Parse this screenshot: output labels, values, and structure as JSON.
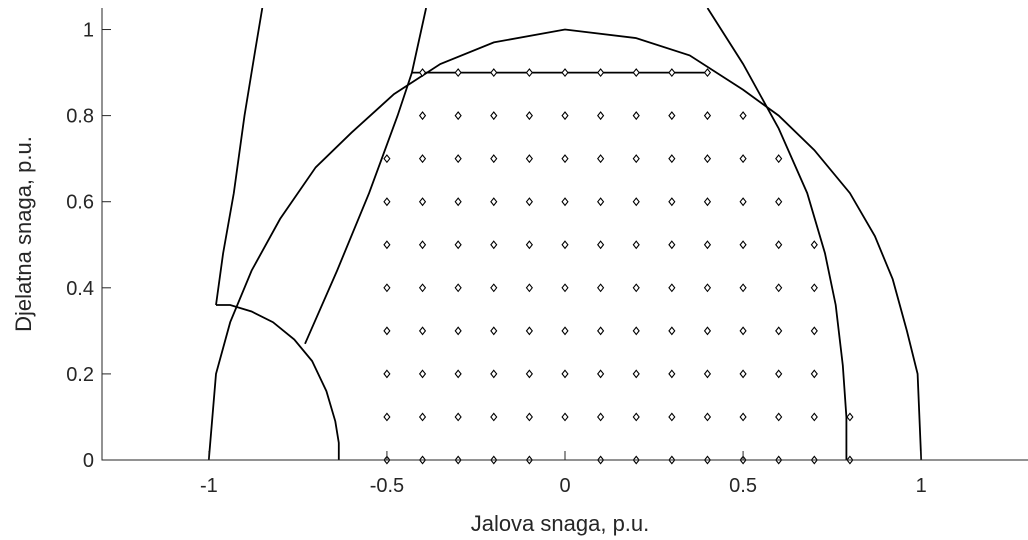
{
  "chart_data": {
    "type": "scatter",
    "title": "",
    "xlabel": "Jalova snaga, p.u.",
    "ylabel": "Djelatna snaga, p.u.",
    "xlim": [
      -1.3,
      1.3
    ],
    "ylim": [
      0,
      1.05
    ],
    "xticks": [
      -1,
      -0.5,
      0,
      0.5,
      1
    ],
    "xtick_labels": [
      "-1",
      "-0.5",
      "0",
      "0.5",
      "1"
    ],
    "yticks": [
      0,
      0.2,
      0.4,
      0.6,
      0.8,
      1
    ],
    "ytick_labels": [
      "0",
      "0.2",
      "0.4",
      "0.6",
      "0.8",
      "1"
    ],
    "grid": false,
    "legend": "none",
    "line_color": "#000000",
    "series": [
      {
        "kind": "line",
        "points": [
          [
            -1,
            0
          ],
          [
            -0.98,
            0.2
          ],
          [
            -0.94,
            0.32
          ],
          [
            -0.88,
            0.44
          ],
          [
            -0.8,
            0.56
          ],
          [
            -0.7,
            0.68
          ],
          [
            -0.6,
            0.76
          ],
          [
            -0.48,
            0.85
          ],
          [
            -0.35,
            0.92
          ],
          [
            -0.2,
            0.97
          ],
          [
            0,
            1.0
          ],
          [
            0.2,
            0.98
          ],
          [
            0.35,
            0.94
          ],
          [
            0.5,
            0.86
          ],
          [
            0.6,
            0.8
          ],
          [
            0.7,
            0.72
          ],
          [
            0.8,
            0.62
          ],
          [
            0.87,
            0.52
          ],
          [
            0.92,
            0.42
          ],
          [
            0.96,
            0.3
          ],
          [
            0.99,
            0.2
          ],
          [
            1,
            0
          ]
        ]
      },
      {
        "kind": "line",
        "points": [
          [
            -0.98,
            0.36
          ],
          [
            -0.94,
            0.36
          ],
          [
            -0.88,
            0.345
          ],
          [
            -0.82,
            0.32
          ],
          [
            -0.76,
            0.28
          ],
          [
            -0.71,
            0.23
          ],
          [
            -0.67,
            0.16
          ],
          [
            -0.645,
            0.09
          ],
          [
            -0.635,
            0.04
          ],
          [
            -0.635,
            0
          ]
        ]
      },
      {
        "kind": "line",
        "points": [
          [
            -0.98,
            0.36
          ],
          [
            -0.96,
            0.48
          ],
          [
            -0.93,
            0.62
          ],
          [
            -0.9,
            0.8
          ],
          [
            -0.87,
            0.95
          ],
          [
            -0.85,
            1.05
          ]
        ]
      },
      {
        "kind": "line",
        "points": [
          [
            -0.73,
            0.27
          ],
          [
            -0.64,
            0.44
          ],
          [
            -0.55,
            0.62
          ],
          [
            -0.47,
            0.8
          ],
          [
            -0.43,
            0.9
          ],
          [
            -0.39,
            1.05
          ]
        ]
      },
      {
        "kind": "line",
        "points": [
          [
            0.4,
            1.05
          ],
          [
            0.5,
            0.92
          ],
          [
            0.6,
            0.77
          ],
          [
            0.68,
            0.62
          ],
          [
            0.73,
            0.48
          ],
          [
            0.76,
            0.36
          ],
          [
            0.78,
            0.22
          ],
          [
            0.79,
            0.1
          ],
          [
            0.79,
            0
          ]
        ]
      },
      {
        "kind": "line",
        "points": [
          [
            -0.43,
            0.9
          ],
          [
            0.4,
            0.9
          ]
        ]
      },
      {
        "kind": "points",
        "marker": "diamond",
        "points": [
          [
            -0.4,
            0.9
          ],
          [
            -0.3,
            0.9
          ],
          [
            -0.2,
            0.9
          ],
          [
            -0.1,
            0.9
          ],
          [
            0,
            0.9
          ],
          [
            0.1,
            0.9
          ],
          [
            0.2,
            0.9
          ],
          [
            0.3,
            0.9
          ],
          [
            0.4,
            0.9
          ],
          [
            -0.4,
            0.8
          ],
          [
            -0.3,
            0.8
          ],
          [
            -0.2,
            0.8
          ],
          [
            -0.1,
            0.8
          ],
          [
            0,
            0.8
          ],
          [
            0.1,
            0.8
          ],
          [
            0.2,
            0.8
          ],
          [
            0.3,
            0.8
          ],
          [
            0.4,
            0.8
          ],
          [
            0.5,
            0.8
          ],
          [
            -0.5,
            0.7
          ],
          [
            -0.4,
            0.7
          ],
          [
            -0.3,
            0.7
          ],
          [
            -0.2,
            0.7
          ],
          [
            -0.1,
            0.7
          ],
          [
            0,
            0.7
          ],
          [
            0.1,
            0.7
          ],
          [
            0.2,
            0.7
          ],
          [
            0.3,
            0.7
          ],
          [
            0.4,
            0.7
          ],
          [
            0.5,
            0.7
          ],
          [
            0.6,
            0.7
          ],
          [
            -0.5,
            0.6
          ],
          [
            -0.4,
            0.6
          ],
          [
            -0.3,
            0.6
          ],
          [
            -0.2,
            0.6
          ],
          [
            -0.1,
            0.6
          ],
          [
            0,
            0.6
          ],
          [
            0.1,
            0.6
          ],
          [
            0.2,
            0.6
          ],
          [
            0.3,
            0.6
          ],
          [
            0.4,
            0.6
          ],
          [
            0.5,
            0.6
          ],
          [
            0.6,
            0.6
          ],
          [
            -0.5,
            0.5
          ],
          [
            -0.4,
            0.5
          ],
          [
            -0.3,
            0.5
          ],
          [
            -0.2,
            0.5
          ],
          [
            -0.1,
            0.5
          ],
          [
            0,
            0.5
          ],
          [
            0.1,
            0.5
          ],
          [
            0.2,
            0.5
          ],
          [
            0.3,
            0.5
          ],
          [
            0.4,
            0.5
          ],
          [
            0.5,
            0.5
          ],
          [
            0.6,
            0.5
          ],
          [
            0.7,
            0.5
          ],
          [
            -0.5,
            0.4
          ],
          [
            -0.4,
            0.4
          ],
          [
            -0.3,
            0.4
          ],
          [
            -0.2,
            0.4
          ],
          [
            -0.1,
            0.4
          ],
          [
            0,
            0.4
          ],
          [
            0.1,
            0.4
          ],
          [
            0.2,
            0.4
          ],
          [
            0.3,
            0.4
          ],
          [
            0.4,
            0.4
          ],
          [
            0.5,
            0.4
          ],
          [
            0.6,
            0.4
          ],
          [
            0.7,
            0.4
          ],
          [
            -0.5,
            0.3
          ],
          [
            -0.4,
            0.3
          ],
          [
            -0.3,
            0.3
          ],
          [
            -0.2,
            0.3
          ],
          [
            -0.1,
            0.3
          ],
          [
            0,
            0.3
          ],
          [
            0.1,
            0.3
          ],
          [
            0.2,
            0.3
          ],
          [
            0.3,
            0.3
          ],
          [
            0.4,
            0.3
          ],
          [
            0.5,
            0.3
          ],
          [
            0.6,
            0.3
          ],
          [
            0.7,
            0.3
          ],
          [
            -0.5,
            0.2
          ],
          [
            -0.4,
            0.2
          ],
          [
            -0.3,
            0.2
          ],
          [
            -0.2,
            0.2
          ],
          [
            -0.1,
            0.2
          ],
          [
            0,
            0.2
          ],
          [
            0.1,
            0.2
          ],
          [
            0.2,
            0.2
          ],
          [
            0.3,
            0.2
          ],
          [
            0.4,
            0.2
          ],
          [
            0.5,
            0.2
          ],
          [
            0.6,
            0.2
          ],
          [
            0.7,
            0.2
          ],
          [
            -0.5,
            0.1
          ],
          [
            -0.4,
            0.1
          ],
          [
            -0.3,
            0.1
          ],
          [
            -0.2,
            0.1
          ],
          [
            -0.1,
            0.1
          ],
          [
            0,
            0.1
          ],
          [
            0.1,
            0.1
          ],
          [
            0.2,
            0.1
          ],
          [
            0.3,
            0.1
          ],
          [
            0.4,
            0.1
          ],
          [
            0.5,
            0.1
          ],
          [
            0.6,
            0.1
          ],
          [
            0.7,
            0.1
          ],
          [
            0.8,
            0.1
          ],
          [
            -0.5,
            0
          ],
          [
            -0.4,
            0
          ],
          [
            -0.3,
            0
          ],
          [
            -0.2,
            0
          ],
          [
            -0.1,
            0
          ],
          [
            0.1,
            0
          ],
          [
            0.2,
            0
          ],
          [
            0.3,
            0
          ],
          [
            0.4,
            0
          ],
          [
            0.5,
            0
          ],
          [
            0.6,
            0
          ],
          [
            0.7,
            0
          ],
          [
            0.8,
            0
          ]
        ]
      }
    ]
  }
}
